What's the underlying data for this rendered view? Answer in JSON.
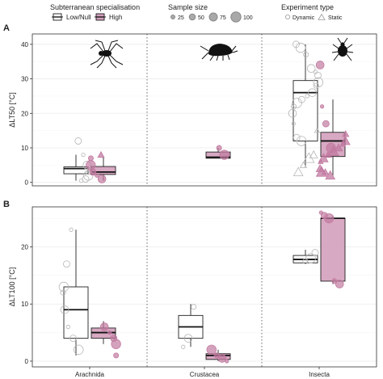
{
  "legend": {
    "specialisation": {
      "title": "Subterranean specialisation",
      "items": [
        {
          "label": "Low/Null",
          "fill": "#ffffff",
          "stroke": "#1a1a1a"
        },
        {
          "label": "High",
          "fill": "#d4a0bd",
          "stroke": "#1a1a1a"
        }
      ]
    },
    "sample_size": {
      "title": "Sample size",
      "items": [
        "25",
        "50",
        "75",
        "100"
      ]
    },
    "experiment": {
      "title": "Experiment type",
      "items": [
        {
          "label": "Dynamic",
          "shape": "circle"
        },
        {
          "label": "Static",
          "shape": "triangle"
        }
      ]
    }
  },
  "colors": {
    "low": "#ffffff",
    "high": "#d4a0bd",
    "high_point": "#c27aa0",
    "low_point": "#c8c8c8",
    "grid": "#ebebeb",
    "border": "#333333"
  },
  "icons": [
    "spider-icon",
    "isopod-icon",
    "beetle-icon"
  ],
  "chart_data": [
    {
      "type": "box",
      "panel": "A",
      "ylabel": "ΔLT50 [°C]",
      "xlabel": "",
      "ylim": [
        -1,
        43
      ],
      "yticks": [
        0,
        10,
        20,
        30,
        40
      ],
      "categories": [
        "Arachnida",
        "Crustacea",
        "Insecta"
      ],
      "boxes": [
        {
          "category": "Arachnida",
          "group": "Low/Null",
          "whisker_low": 0.5,
          "q1": 2.5,
          "median": 4,
          "q3": 4.5,
          "whisker_high": 8
        },
        {
          "category": "Arachnida",
          "group": "High",
          "whisker_low": 0.5,
          "q1": 2.3,
          "median": 3,
          "q3": 4.6,
          "whisker_high": 7.5
        },
        {
          "category": "Crustacea",
          "group": "High",
          "whisker_low": 7,
          "q1": 7,
          "median": 7.3,
          "q3": 8.8,
          "whisker_high": 10
        },
        {
          "category": "Insecta",
          "group": "Low/Null",
          "whisker_low": 4.5,
          "q1": 12,
          "median": 26,
          "q3": 29.5,
          "whisker_high": 40
        },
        {
          "category": "Insecta",
          "group": "High",
          "whisker_low": 2,
          "q1": 7.5,
          "median": 12,
          "q3": 14.5,
          "whisker_high": 24
        }
      ],
      "points": [
        {
          "category": "Arachnida",
          "group": "Low/Null",
          "shape": "circle",
          "values": [
            0.5,
            1,
            2,
            3,
            5,
            8,
            12
          ]
        },
        {
          "category": "Arachnida",
          "group": "High",
          "shape": "circle",
          "values": [
            1,
            2,
            3,
            5,
            7
          ]
        },
        {
          "category": "Arachnida",
          "group": "High",
          "shape": "triangle",
          "values": [
            8
          ]
        },
        {
          "category": "Crustacea",
          "group": "High",
          "shape": "circle",
          "values": [
            8,
            10
          ]
        },
        {
          "category": "Insecta",
          "group": "Low/Null",
          "shape": "circle",
          "values": [
            40,
            39,
            37,
            33,
            32,
            31,
            29,
            28,
            26,
            25,
            24,
            23,
            22,
            20,
            17,
            13,
            12
          ]
        },
        {
          "category": "Insecta",
          "group": "Low/Null",
          "shape": "triangle",
          "values": [
            15,
            8,
            7,
            5,
            3
          ]
        },
        {
          "category": "Insecta",
          "group": "High",
          "shape": "circle",
          "values": [
            34,
            22,
            17,
            10
          ]
        },
        {
          "category": "Insecta",
          "group": "High",
          "shape": "triangle",
          "values": [
            14,
            12,
            11,
            10,
            9,
            8,
            7,
            6,
            4,
            3,
            3,
            2
          ]
        }
      ]
    },
    {
      "type": "box",
      "panel": "B",
      "ylabel": "ΔLT100 [°C]",
      "xlabel": "",
      "ylim": [
        -1,
        27
      ],
      "yticks": [
        0,
        10,
        20
      ],
      "categories": [
        "Arachnida",
        "Crustacea",
        "Insecta"
      ],
      "boxes": [
        {
          "category": "Arachnida",
          "group": "Low/Null",
          "whisker_low": 1,
          "q1": 4,
          "median": 9,
          "q3": 13,
          "whisker_high": 23
        },
        {
          "category": "Arachnida",
          "group": "High",
          "whisker_low": 3,
          "q1": 4,
          "median": 5,
          "q3": 5.8,
          "whisker_high": 7
        },
        {
          "category": "Crustacea",
          "group": "Low/Null",
          "whisker_low": 2.5,
          "q1": 4,
          "median": 6,
          "q3": 8,
          "whisker_high": 10
        },
        {
          "category": "Crustacea",
          "group": "High",
          "whisker_low": 0,
          "q1": 0.3,
          "median": 1,
          "q3": 1.3,
          "whisker_high": 2
        },
        {
          "category": "Insecta",
          "group": "Low/Null",
          "whisker_low": 17,
          "q1": 17.2,
          "median": 17.8,
          "q3": 18.5,
          "whisker_high": 19.5
        },
        {
          "category": "Insecta",
          "group": "High",
          "whisker_low": 13.5,
          "q1": 14,
          "median": 25,
          "q3": 25,
          "whisker_high": 25.5
        }
      ],
      "points": [
        {
          "category": "Arachnida",
          "group": "Low/Null",
          "shape": "circle",
          "values": [
            23,
            17,
            13,
            12,
            9,
            6,
            4,
            2
          ]
        },
        {
          "category": "Arachnida",
          "group": "High",
          "shape": "circle",
          "values": [
            6,
            5,
            4,
            3,
            1
          ]
        },
        {
          "category": "Crustacea",
          "group": "Low/Null",
          "shape": "circle",
          "values": [
            9.5,
            4,
            2.5
          ]
        },
        {
          "category": "Crustacea",
          "group": "High",
          "shape": "circle",
          "values": [
            2,
            1,
            0.5,
            0
          ]
        },
        {
          "category": "Insecta",
          "group": "Low/Null",
          "shape": "circle",
          "values": [
            19,
            18,
            17.5
          ]
        },
        {
          "category": "Insecta",
          "group": "High",
          "shape": "circle",
          "values": [
            26,
            25.5,
            25,
            14,
            13.5
          ]
        }
      ]
    }
  ]
}
